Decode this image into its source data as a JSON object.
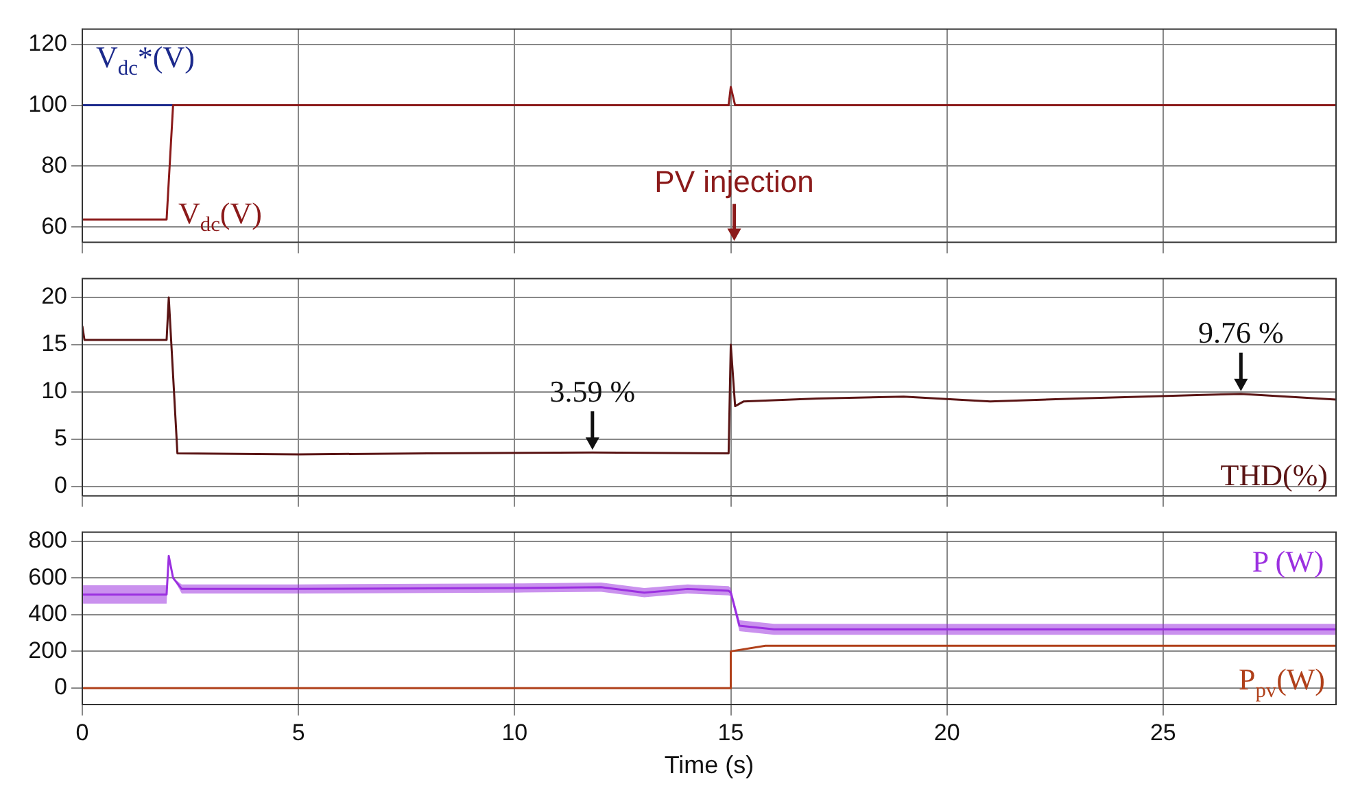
{
  "chart_data": [
    {
      "type": "line",
      "xlim": [
        0,
        29
      ],
      "xticks": [
        0,
        5,
        10,
        15,
        20,
        25
      ],
      "ylim": [
        55,
        125
      ],
      "yticks": [
        60,
        80,
        100,
        120
      ],
      "grid": true,
      "legend": false,
      "tick_labels": "y",
      "marker": "none",
      "annotations": [
        "PV injection"
      ],
      "series": [
        {
          "name": "V$_{dc}$*(V)",
          "color": "#1c2a8c",
          "x": [
            0,
            2.1
          ],
          "values": [
            100,
            100
          ]
        },
        {
          "name": "V$_{dc}$(V)",
          "color": "#8b1a1a",
          "x": [
            0,
            1.95,
            2.1,
            14.95,
            15.0,
            15.1,
            29
          ],
          "values": [
            62.5,
            62.5,
            100,
            100,
            106,
            100,
            100
          ]
        }
      ]
    },
    {
      "type": "line",
      "xlim": [
        0,
        29
      ],
      "xticks": [
        0,
        5,
        10,
        15,
        20,
        25
      ],
      "ylim": [
        -1,
        22
      ],
      "yticks": [
        0,
        5,
        10,
        15,
        20
      ],
      "grid": true,
      "legend": false,
      "tick_labels": "y",
      "marker": "none",
      "annotations": [
        {
          "text": "3.59 %",
          "x": 11.8,
          "y": 3.6
        },
        {
          "text": "9.76 %",
          "x": 26.8,
          "y": 9.8
        }
      ],
      "series": [
        {
          "name": "THD(%)",
          "color": "#5a1414",
          "x": [
            0,
            0.05,
            1.95,
            2.0,
            2.2,
            5,
            8,
            11.8,
            14.95,
            15.0,
            15.1,
            15.3,
            17,
            19,
            21,
            23,
            26.8,
            29
          ],
          "values": [
            17,
            15.5,
            15.5,
            20,
            3.5,
            3.4,
            3.5,
            3.6,
            3.5,
            15,
            8.5,
            9,
            9.3,
            9.5,
            9,
            9.3,
            9.8,
            9.2
          ]
        }
      ]
    },
    {
      "type": "line",
      "xlabel": "Time (s)",
      "xlim": [
        0,
        29
      ],
      "xticks": [
        0,
        5,
        10,
        15,
        20,
        25
      ],
      "ylim": [
        -90,
        850
      ],
      "yticks": [
        0,
        200,
        400,
        600,
        800
      ],
      "grid": true,
      "legend": false,
      "marker": "none",
      "series": [
        {
          "name": "P (W)",
          "color": "#9b30e0",
          "x": [
            0,
            1.95,
            2.0,
            2.1,
            2.3,
            5,
            10,
            12,
            13,
            14,
            14.95,
            15.0,
            15.2,
            16,
            20,
            25,
            29
          ],
          "values": [
            510,
            510,
            720,
            600,
            540,
            540,
            545,
            550,
            520,
            540,
            530,
            520,
            340,
            320,
            320,
            320,
            320
          ],
          "lower": [
            460,
            460,
            720,
            600,
            515,
            515,
            520,
            525,
            495,
            515,
            505,
            500,
            310,
            290,
            290,
            290,
            290
          ],
          "upper": [
            560,
            560,
            720,
            600,
            565,
            565,
            570,
            575,
            545,
            565,
            555,
            545,
            370,
            350,
            350,
            350,
            350
          ]
        },
        {
          "name": "P$_{pv}$(W)",
          "color": "#b0401a",
          "x": [
            0,
            14.98,
            15.0,
            15.8,
            29
          ],
          "values": [
            0,
            0,
            200,
            230,
            230
          ]
        }
      ]
    }
  ]
}
